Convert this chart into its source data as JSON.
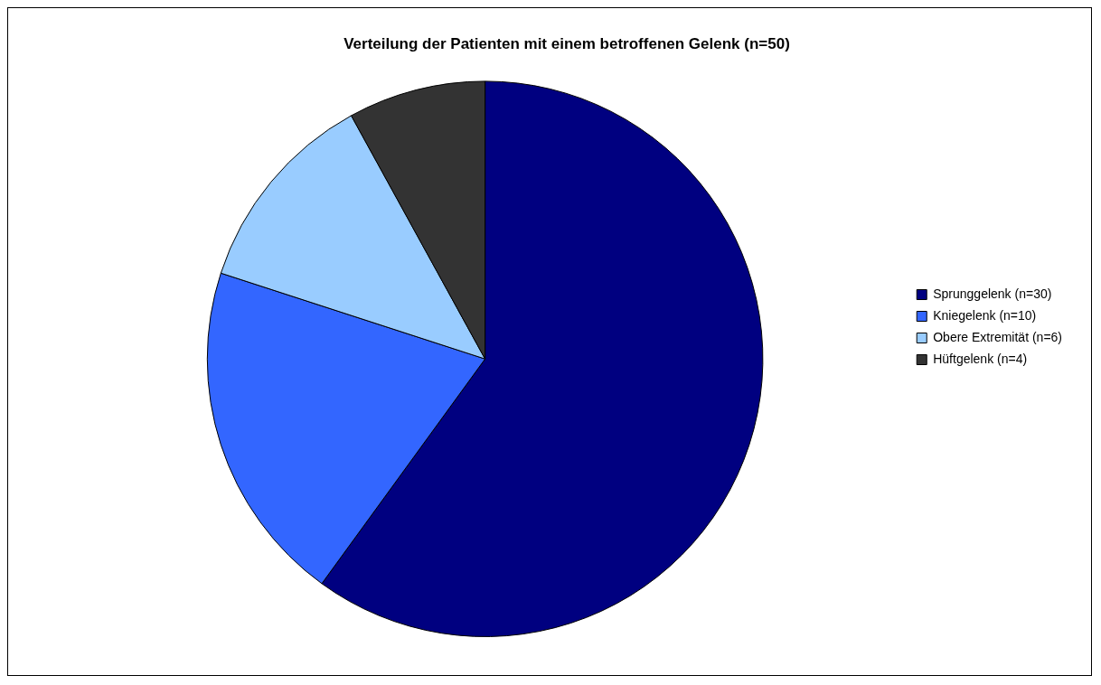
{
  "chart_data": {
    "type": "pie",
    "title": "Verteilung der Patienten mit einem betroffenen Gelenk (n=50)",
    "categories": [
      "Sprunggelenk (n=30)",
      "Kniegelenk (n=10)",
      "Obere Extremität (n=6)",
      "Hüftgelenk (n=4)"
    ],
    "values": [
      30,
      10,
      6,
      4
    ],
    "colors": [
      "#000080",
      "#3366ff",
      "#99ccff",
      "#333333"
    ],
    "legend": "right"
  }
}
